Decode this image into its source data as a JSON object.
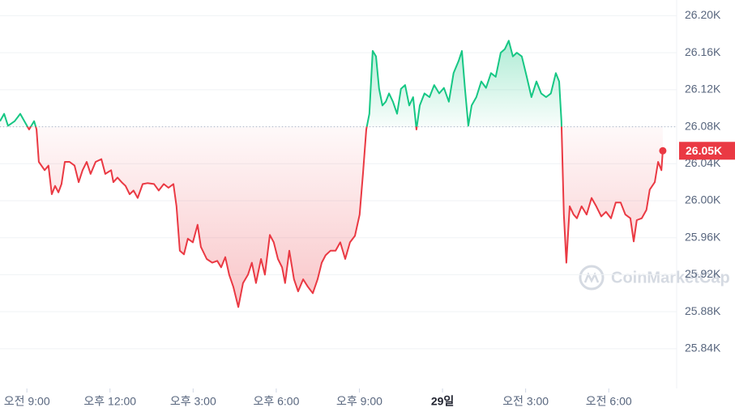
{
  "chart_data": {
    "type": "line",
    "x": [
      8.03,
      8.18,
      8.32,
      8.56,
      8.76,
      8.91,
      9.08,
      9.26,
      9.35,
      9.43,
      9.64,
      9.78,
      9.9,
      10.02,
      10.14,
      10.25,
      10.37,
      10.54,
      10.72,
      10.87,
      11.01,
      11.16,
      11.3,
      11.48,
      11.69,
      11.83,
      12.04,
      12.12,
      12.27,
      12.42,
      12.56,
      12.71,
      12.85,
      13.0,
      13.18,
      13.35,
      13.59,
      13.76,
      13.94,
      14.11,
      14.29,
      14.4,
      14.52,
      14.67,
      14.81,
      14.99,
      15.16,
      15.28,
      15.49,
      15.69,
      15.87,
      16.01,
      16.16,
      16.3,
      16.45,
      16.63,
      16.8,
      16.98,
      17.12,
      17.27,
      17.45,
      17.59,
      17.77,
      17.91,
      18.06,
      18.21,
      18.32,
      18.47,
      18.64,
      18.79,
      18.97,
      19.14,
      19.32,
      19.49,
      19.64,
      19.78,
      19.96,
      20.14,
      20.31,
      20.49,
      20.66,
      20.84,
      21.01,
      21.13,
      21.25,
      21.36,
      21.48,
      21.6,
      21.71,
      21.83,
      21.95,
      22.07,
      22.21,
      22.36,
      22.5,
      22.65,
      22.8,
      22.94,
      23.06,
      23.18,
      23.35,
      23.53,
      23.7,
      23.88,
      24.05,
      24.23,
      24.4,
      24.58,
      24.7,
      24.81,
      24.93,
      25.05,
      25.22,
      25.4,
      25.57,
      25.75,
      25.92,
      26.1,
      26.25,
      26.39,
      26.54,
      26.68,
      26.86,
      27.04,
      27.21,
      27.39,
      27.56,
      27.74,
      27.91,
      28.09,
      28.21,
      28.29,
      28.38,
      28.47,
      28.59,
      28.73,
      28.85,
      29.02,
      29.2,
      29.38,
      29.55,
      29.73,
      29.9,
      30.08,
      30.25,
      30.43,
      30.6,
      30.78,
      30.9,
      31.01,
      31.19,
      31.36,
      31.48,
      31.66,
      31.78,
      31.9,
      31.95
    ],
    "values": [
      26086,
      26094,
      26081,
      26086,
      26094,
      26086,
      26077,
      26086,
      26077,
      26042,
      26033,
      26038,
      26007,
      26016,
      26009,
      26018,
      26042,
      26042,
      26038,
      26020,
      26033,
      26042,
      26029,
      26042,
      26045,
      26029,
      26033,
      26020,
      26025,
      26020,
      26016,
      26007,
      26011,
      26003,
      26018,
      26019,
      26018,
      26011,
      26018,
      26014,
      26018,
      25994,
      25946,
      25942,
      25959,
      25955,
      25974,
      25950,
      25937,
      25933,
      25935,
      25928,
      25939,
      25920,
      25907,
      25885,
      25911,
      25920,
      25933,
      25911,
      25937,
      25920,
      25963,
      25955,
      25937,
      25928,
      25911,
      25946,
      25915,
      25902,
      25915,
      25907,
      25900,
      25915,
      25933,
      25941,
      25946,
      25946,
      25955,
      25937,
      25955,
      25962,
      25985,
      26029,
      26077,
      26094,
      26162,
      26156,
      26121,
      26103,
      26107,
      26116,
      26107,
      26094,
      26121,
      26125,
      26103,
      26112,
      26077,
      26103,
      26116,
      26112,
      26125,
      26116,
      26122,
      26107,
      26138,
      26151,
      26162,
      26121,
      26081,
      26103,
      26112,
      26129,
      26122,
      26138,
      26134,
      26160,
      26164,
      26173,
      26156,
      26160,
      26156,
      26134,
      26112,
      26129,
      26116,
      26112,
      26116,
      26138,
      26129,
      26086,
      25985,
      25933,
      25994,
      25985,
      25981,
      25994,
      25985,
      26003,
      25994,
      25983,
      25988,
      25981,
      25998,
      25998,
      25985,
      25981,
      25956,
      25979,
      25981,
      25990,
      26012,
      26020,
      26042,
      26033,
      26054
    ],
    "xlim": [
      8.03,
      32.45
    ],
    "xticks": [
      {
        "value": 9,
        "label": "오전 9:00"
      },
      {
        "value": 12,
        "label": "오후 12:00"
      },
      {
        "value": 15,
        "label": "오후 3:00"
      },
      {
        "value": 18,
        "label": "오후 6:00"
      },
      {
        "value": 21,
        "label": "오후 9:00"
      },
      {
        "value": 24,
        "label": "29일"
      },
      {
        "value": 27,
        "label": "오전 3:00"
      },
      {
        "value": 30,
        "label": "오전 6:00"
      }
    ],
    "ylim": [
      25797,
      26217
    ],
    "yticks": [
      {
        "value": 25840,
        "label": "25.84K"
      },
      {
        "value": 25880,
        "label": "25.88K"
      },
      {
        "value": 25920,
        "label": "25.92K"
      },
      {
        "value": 25960,
        "label": "25.96K"
      },
      {
        "value": 26000,
        "label": "26.00K"
      },
      {
        "value": 26040,
        "label": "26.04K"
      },
      {
        "value": 26080,
        "label": "26.08K"
      },
      {
        "value": 26120,
        "label": "26.12K"
      },
      {
        "value": 26160,
        "label": "26.16K"
      },
      {
        "value": 26200,
        "label": "26.20K"
      }
    ],
    "baseline": 26080,
    "up_color": "#16c784",
    "down_color": "#ea3943",
    "current_value_label": "26.05K",
    "watermark": "CoinMarketCap",
    "grid": true
  }
}
